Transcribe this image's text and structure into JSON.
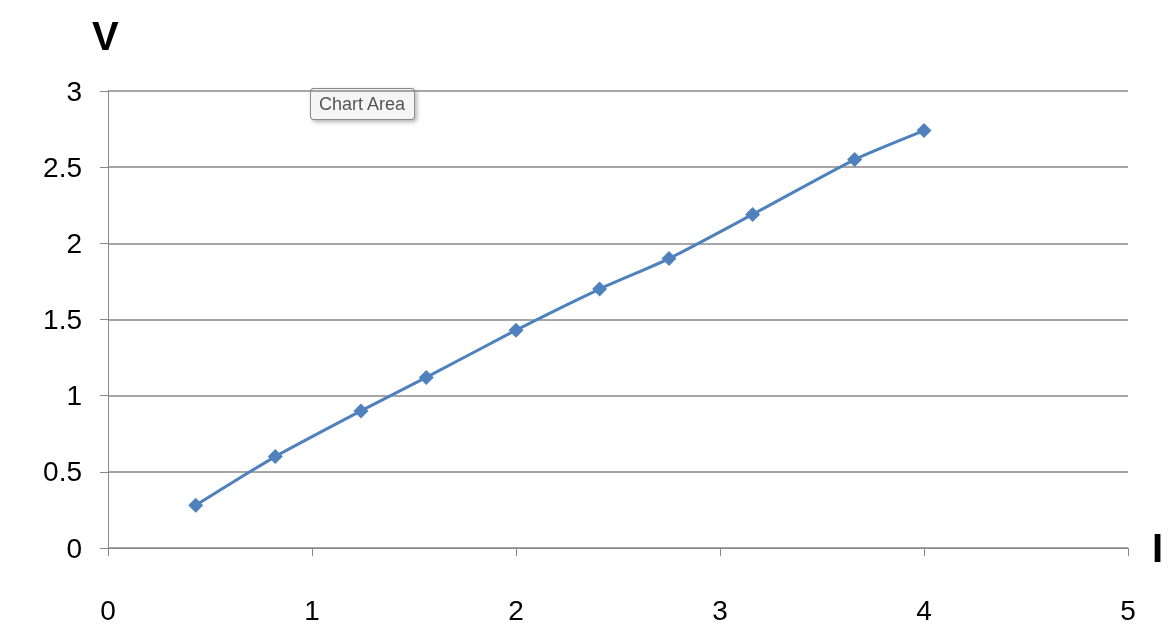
{
  "chart_data": {
    "type": "line",
    "xlabel": "I",
    "ylabel": "V",
    "annotations": [
      "Chart Area"
    ],
    "x": [
      0.43,
      0.82,
      1.24,
      1.56,
      2.0,
      2.41,
      2.75,
      3.16,
      3.66,
      4.0
    ],
    "series": [
      {
        "color": "#4f81bd",
        "values": [
          0.28,
          0.6,
          0.9,
          1.12,
          1.43,
          1.7,
          1.9,
          2.19,
          2.55,
          2.74
        ]
      }
    ],
    "xlim": [
      0,
      5
    ],
    "xticks": [
      0,
      1,
      2,
      3,
      4,
      5
    ],
    "ylim": [
      0,
      3
    ],
    "yticks": [
      0,
      0.5,
      1,
      1.5,
      2,
      2.5,
      3
    ],
    "grid": "y",
    "marker": "diamond",
    "line_style": "solid"
  }
}
